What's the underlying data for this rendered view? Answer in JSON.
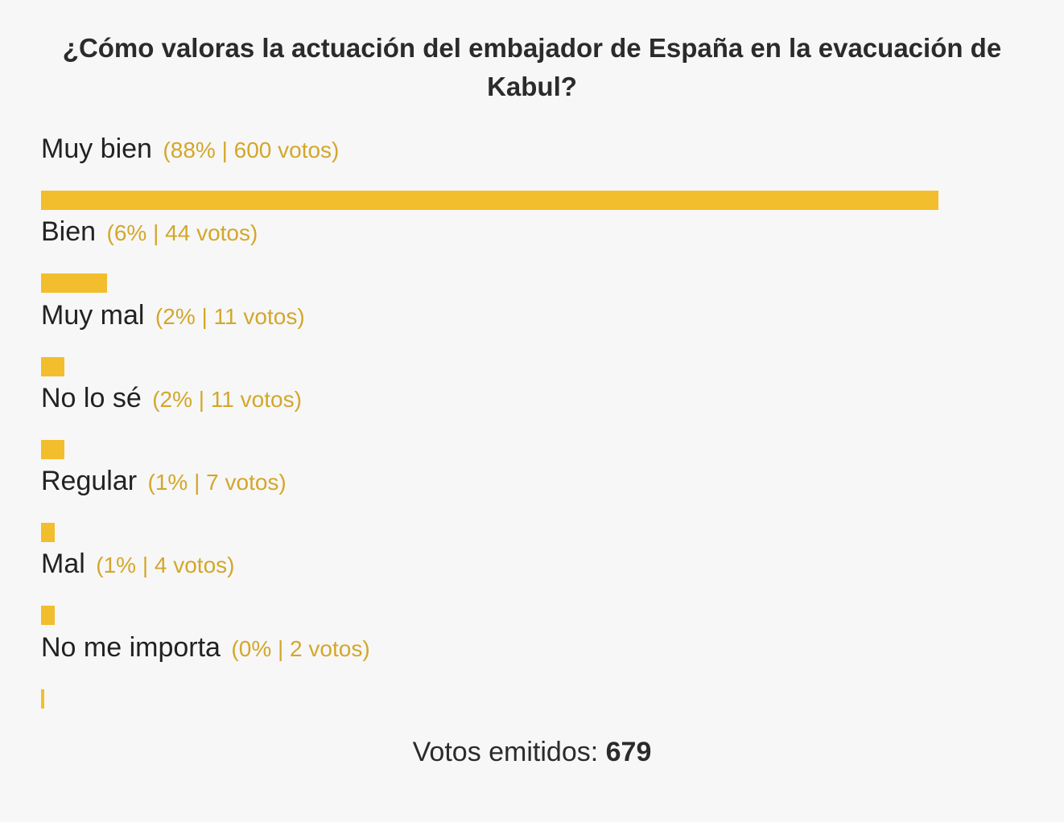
{
  "poll": {
    "question": "¿Cómo valoras la actuación del embajador de España en la evacuación de Kabul?",
    "total_label": "Votos emitidos:",
    "total_votes": "679"
  },
  "colors": {
    "bar": "#f3be2d",
    "stats_text": "#d3a72a",
    "background": "#f7f7f7"
  },
  "chart_data": {
    "type": "bar",
    "orientation": "horizontal",
    "title": "¿Cómo valoras la actuación del embajador de España en la evacuación de Kabul?",
    "categories": [
      "Muy bien",
      "Bien",
      "Muy mal",
      "No lo sé",
      "Regular",
      "Mal",
      "No me importa"
    ],
    "values": [
      600,
      44,
      11,
      11,
      7,
      4,
      2
    ],
    "percent_labels": [
      "(88% | 600 votos)",
      "(6% | 44 votos)",
      "(2% | 11 votos)",
      "(2% | 11 votos)",
      "(1% | 7 votos)",
      "(1% | 4 votos)",
      "(0% | 2 votos)"
    ],
    "total": 679,
    "grid": false
  }
}
